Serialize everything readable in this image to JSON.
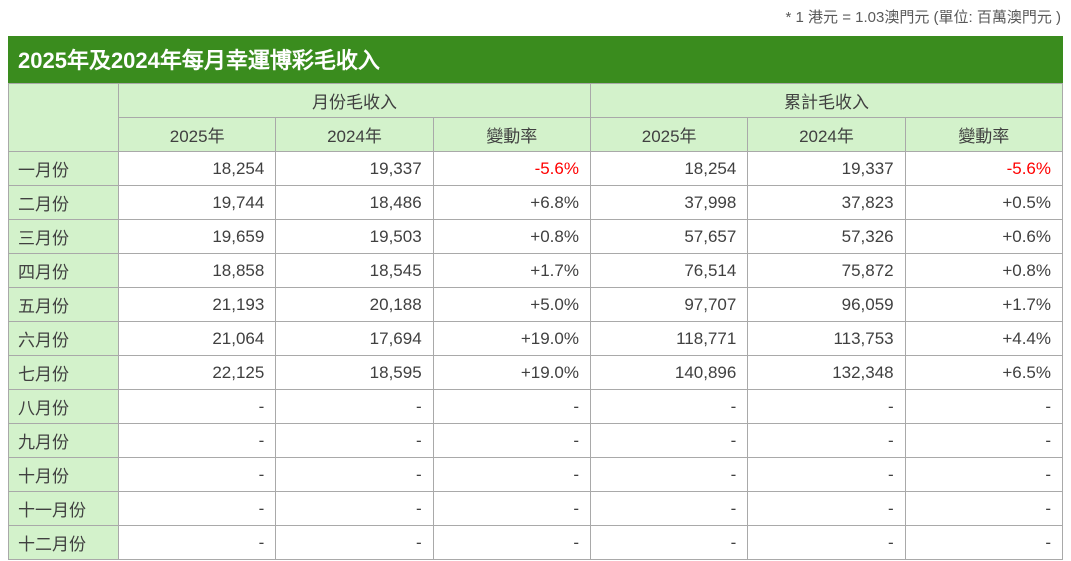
{
  "note": "* 1 港元 = 1.03澳門元 (單位: 百萬澳門元 )",
  "title": "2025年及2024年每月幸運博彩毛收入",
  "colors": {
    "title_bar_green": "#3a8c1e",
    "header_light_green": "#d3f2cb",
    "border_gray": "#a9a9a9",
    "negative_red": "#ff0000",
    "text_gray": "#404040",
    "note_gray": "#595959"
  },
  "table": {
    "groups": {
      "monthly": "月份毛收入",
      "cumulative": "累計毛收入"
    },
    "col_headers": {
      "y2025": "2025年",
      "y2024": "2024年",
      "change": "變動率"
    },
    "rows": [
      {
        "month": "一月份",
        "cells": [
          "18,254",
          "19,337",
          "-5.6%",
          "18,254",
          "19,337",
          "-5.6%"
        ]
      },
      {
        "month": "二月份",
        "cells": [
          "19,744",
          "18,486",
          "+6.8%",
          "37,998",
          "37,823",
          "+0.5%"
        ]
      },
      {
        "month": "三月份",
        "cells": [
          "19,659",
          "19,503",
          "+0.8%",
          "57,657",
          "57,326",
          "+0.6%"
        ]
      },
      {
        "month": "四月份",
        "cells": [
          "18,858",
          "18,545",
          "+1.7%",
          "76,514",
          "75,872",
          "+0.8%"
        ]
      },
      {
        "month": "五月份",
        "cells": [
          "21,193",
          "20,188",
          "+5.0%",
          "97,707",
          "96,059",
          "+1.7%"
        ]
      },
      {
        "month": "六月份",
        "cells": [
          "21,064",
          "17,694",
          "+19.0%",
          "118,771",
          "113,753",
          "+4.4%"
        ]
      },
      {
        "month": "七月份",
        "cells": [
          "22,125",
          "18,595",
          "+19.0%",
          "140,896",
          "132,348",
          "+6.5%"
        ]
      },
      {
        "month": "八月份",
        "cells": [
          "-",
          "-",
          "-",
          "-",
          "-",
          "-"
        ]
      },
      {
        "month": "九月份",
        "cells": [
          "-",
          "-",
          "-",
          "-",
          "-",
          "-"
        ]
      },
      {
        "month": "十月份",
        "cells": [
          "-",
          "-",
          "-",
          "-",
          "-",
          "-"
        ]
      },
      {
        "month": "十一月份",
        "cells": [
          "-",
          "-",
          "-",
          "-",
          "-",
          "-"
        ]
      },
      {
        "month": "十二月份",
        "cells": [
          "-",
          "-",
          "-",
          "-",
          "-",
          "-"
        ]
      }
    ]
  },
  "chart_data": {
    "type": "table",
    "title": "2025年及2024年每月幸運博彩毛收入",
    "unit_note": "* 1 港元 = 1.03澳門元 (單位: 百萬澳門元 )",
    "column_groups": [
      "月份毛收入",
      "累計毛收入"
    ],
    "columns": [
      "2025年",
      "2024年",
      "變動率",
      "2025年",
      "2024年",
      "變動率"
    ],
    "months": [
      "一月份",
      "二月份",
      "三月份",
      "四月份",
      "五月份",
      "六月份",
      "七月份",
      "八月份",
      "九月份",
      "十月份",
      "十一月份",
      "十二月份"
    ],
    "monthly_2025": [
      18254,
      19744,
      19659,
      18858,
      21193,
      21064,
      22125,
      null,
      null,
      null,
      null,
      null
    ],
    "monthly_2024": [
      19337,
      18486,
      19503,
      18545,
      20188,
      17694,
      18595,
      null,
      null,
      null,
      null,
      null
    ],
    "monthly_change_pct": [
      -5.6,
      6.8,
      0.8,
      1.7,
      5.0,
      19.0,
      19.0,
      null,
      null,
      null,
      null,
      null
    ],
    "cumulative_2025": [
      18254,
      37998,
      57657,
      76514,
      97707,
      118771,
      140896,
      null,
      null,
      null,
      null,
      null
    ],
    "cumulative_2024": [
      19337,
      37823,
      57326,
      75872,
      96059,
      113753,
      132348,
      null,
      null,
      null,
      null,
      null
    ],
    "cumulative_change_pct": [
      -5.6,
      0.5,
      0.6,
      0.8,
      1.7,
      4.4,
      6.5,
      null,
      null,
      null,
      null,
      null
    ]
  }
}
